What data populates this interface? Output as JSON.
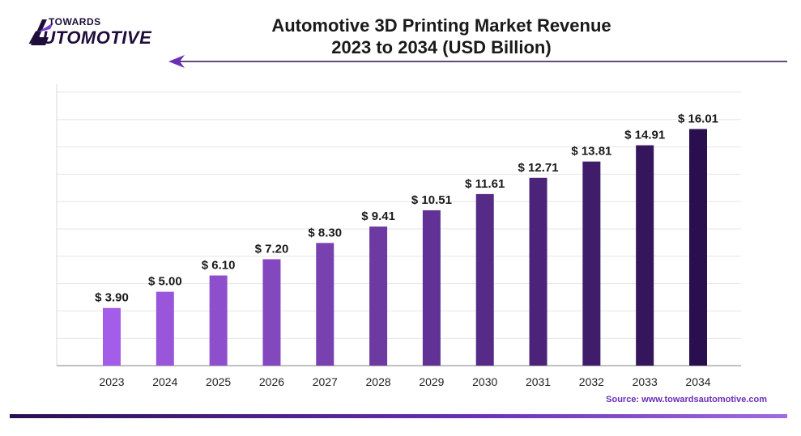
{
  "logo": {
    "line1": "TOWARDS",
    "line2": "AUTOMOTIVE"
  },
  "title_line1": "Automotive 3D Printing Market Revenue",
  "title_line2": "2023 to 2034 (USD Billion)",
  "source": "Source: www.towardsautomotive.com",
  "colors": {
    "bar_start": "#a45de8",
    "bar_end": "#2a0f4f",
    "accent": "#6a2fb5"
  },
  "chart_data": {
    "type": "bar",
    "title": "Automotive 3D Printing Market Revenue 2023 to 2034 (USD Billion)",
    "xlabel": "",
    "ylabel": "",
    "categories": [
      "2023",
      "2024",
      "2025",
      "2026",
      "2027",
      "2028",
      "2029",
      "2030",
      "2031",
      "2032",
      "2033",
      "2034"
    ],
    "values": [
      3.9,
      5.0,
      6.1,
      7.2,
      8.3,
      9.41,
      10.51,
      11.61,
      12.71,
      13.81,
      14.91,
      16.01
    ],
    "labels": [
      "$ 3.90",
      "$ 5.00",
      "$ 6.10",
      "$ 7.20",
      "$ 8.30",
      "$ 9.41",
      "$ 10.51",
      "$ 11.61",
      "$ 12.71",
      "$ 13.81",
      "$ 14.91",
      "$ 16.01"
    ],
    "ylim": [
      0,
      18.5
    ],
    "grid": true
  }
}
